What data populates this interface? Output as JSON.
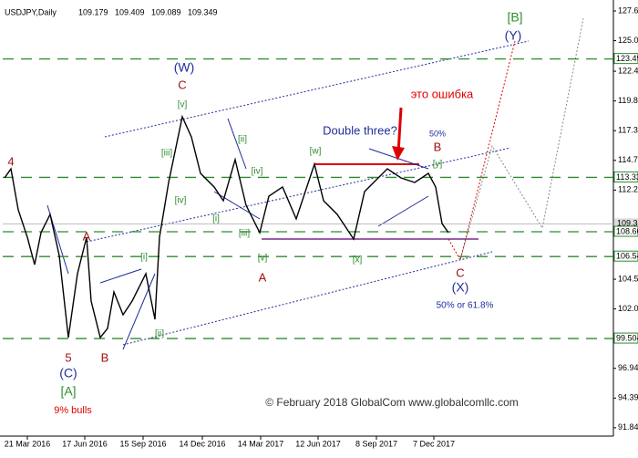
{
  "chart_data": {
    "type": "line",
    "symbol": "USDJPY,Daily",
    "ohlc": [
      109.179,
      109.409,
      109.089,
      109.349
    ],
    "series": [
      {
        "color": "#000000",
        "x": [
          2,
          9,
          17,
          27,
          35,
          42,
          52,
          62,
          72,
          82,
          92,
          97,
          107,
          115,
          122,
          132,
          142,
          157,
          167,
          172,
          182,
          197,
          207,
          217,
          232,
          242,
          255,
          267,
          282,
          292,
          307,
          322,
          342,
          352,
          367,
          385,
          397,
          407,
          422,
          437,
          452,
          467,
          475,
          482,
          489
        ],
        "values": [
          113.29,
          114.07,
          110.55,
          108.2,
          105.85,
          108.59,
          110.16,
          106.63,
          99.59,
          105.07,
          108.2,
          102.72,
          99.59,
          100.37,
          103.5,
          101.54,
          102.72,
          105.07,
          101.15,
          108.2,
          112.9,
          118.54,
          116.81,
          113.68,
          112.51,
          111.33,
          114.86,
          110.94,
          108.59,
          111.72,
          112.51,
          109.77,
          114.47,
          111.33,
          110.16,
          108.04,
          112.12,
          112.9,
          114.07,
          113.29,
          112.9,
          113.68,
          112.51,
          109.37,
          108.59
        ]
      }
    ],
    "xlim": [
      0,
      670
    ],
    "xticks": [
      {
        "value": 27,
        "label": "21 Mar 2016"
      },
      {
        "value": 90,
        "label": "17 Jun 2016"
      },
      {
        "value": 154,
        "label": "15 Sep 2016"
      },
      {
        "value": 219,
        "label": "14 Dec 2016"
      },
      {
        "value": 283,
        "label": "14 Mar 2017"
      },
      {
        "value": 346,
        "label": "12 Jun 2017"
      },
      {
        "value": 410,
        "label": "8 Sep 2017"
      },
      {
        "value": 473,
        "label": "7 Dec 2017"
      }
    ],
    "ylim": [
      91.13,
      128.56
    ],
    "yticks": [
      {
        "value": 127.62,
        "label": "127.620"
      },
      {
        "value": 125.07,
        "label": "125.070"
      },
      122.445,
      119.895,
      117.345,
      114.795,
      112.245,
      104.595,
      102.045,
      96.945,
      94.395,
      91.845
    ],
    "levels": [
      123.499,
      113.333,
      108.669,
      {
        "value": 106.54,
        "label": "106.540"
      },
      99.504
    ],
    "level_color": "#2e8b2e",
    "annotations": [
      "4",
      "A",
      "5",
      "(C)",
      "[A]",
      "9% bulls",
      "B",
      "[i]",
      "[ii]",
      "(W)",
      "C",
      "[v]",
      "[iii]",
      "[iv]",
      "[i]",
      "[ii]",
      "[iv]",
      "[iii]",
      "[v]",
      "A",
      "Double three?",
      "[w]",
      "[x]",
      "это ошибка",
      "50%",
      "B",
      "[y]",
      "C",
      "(X)",
      "50% or 61.8%",
      "[B]",
      "(Y)",
      "© February 2018 GlobalCom www.globalcomllc.com"
    ]
  }
}
